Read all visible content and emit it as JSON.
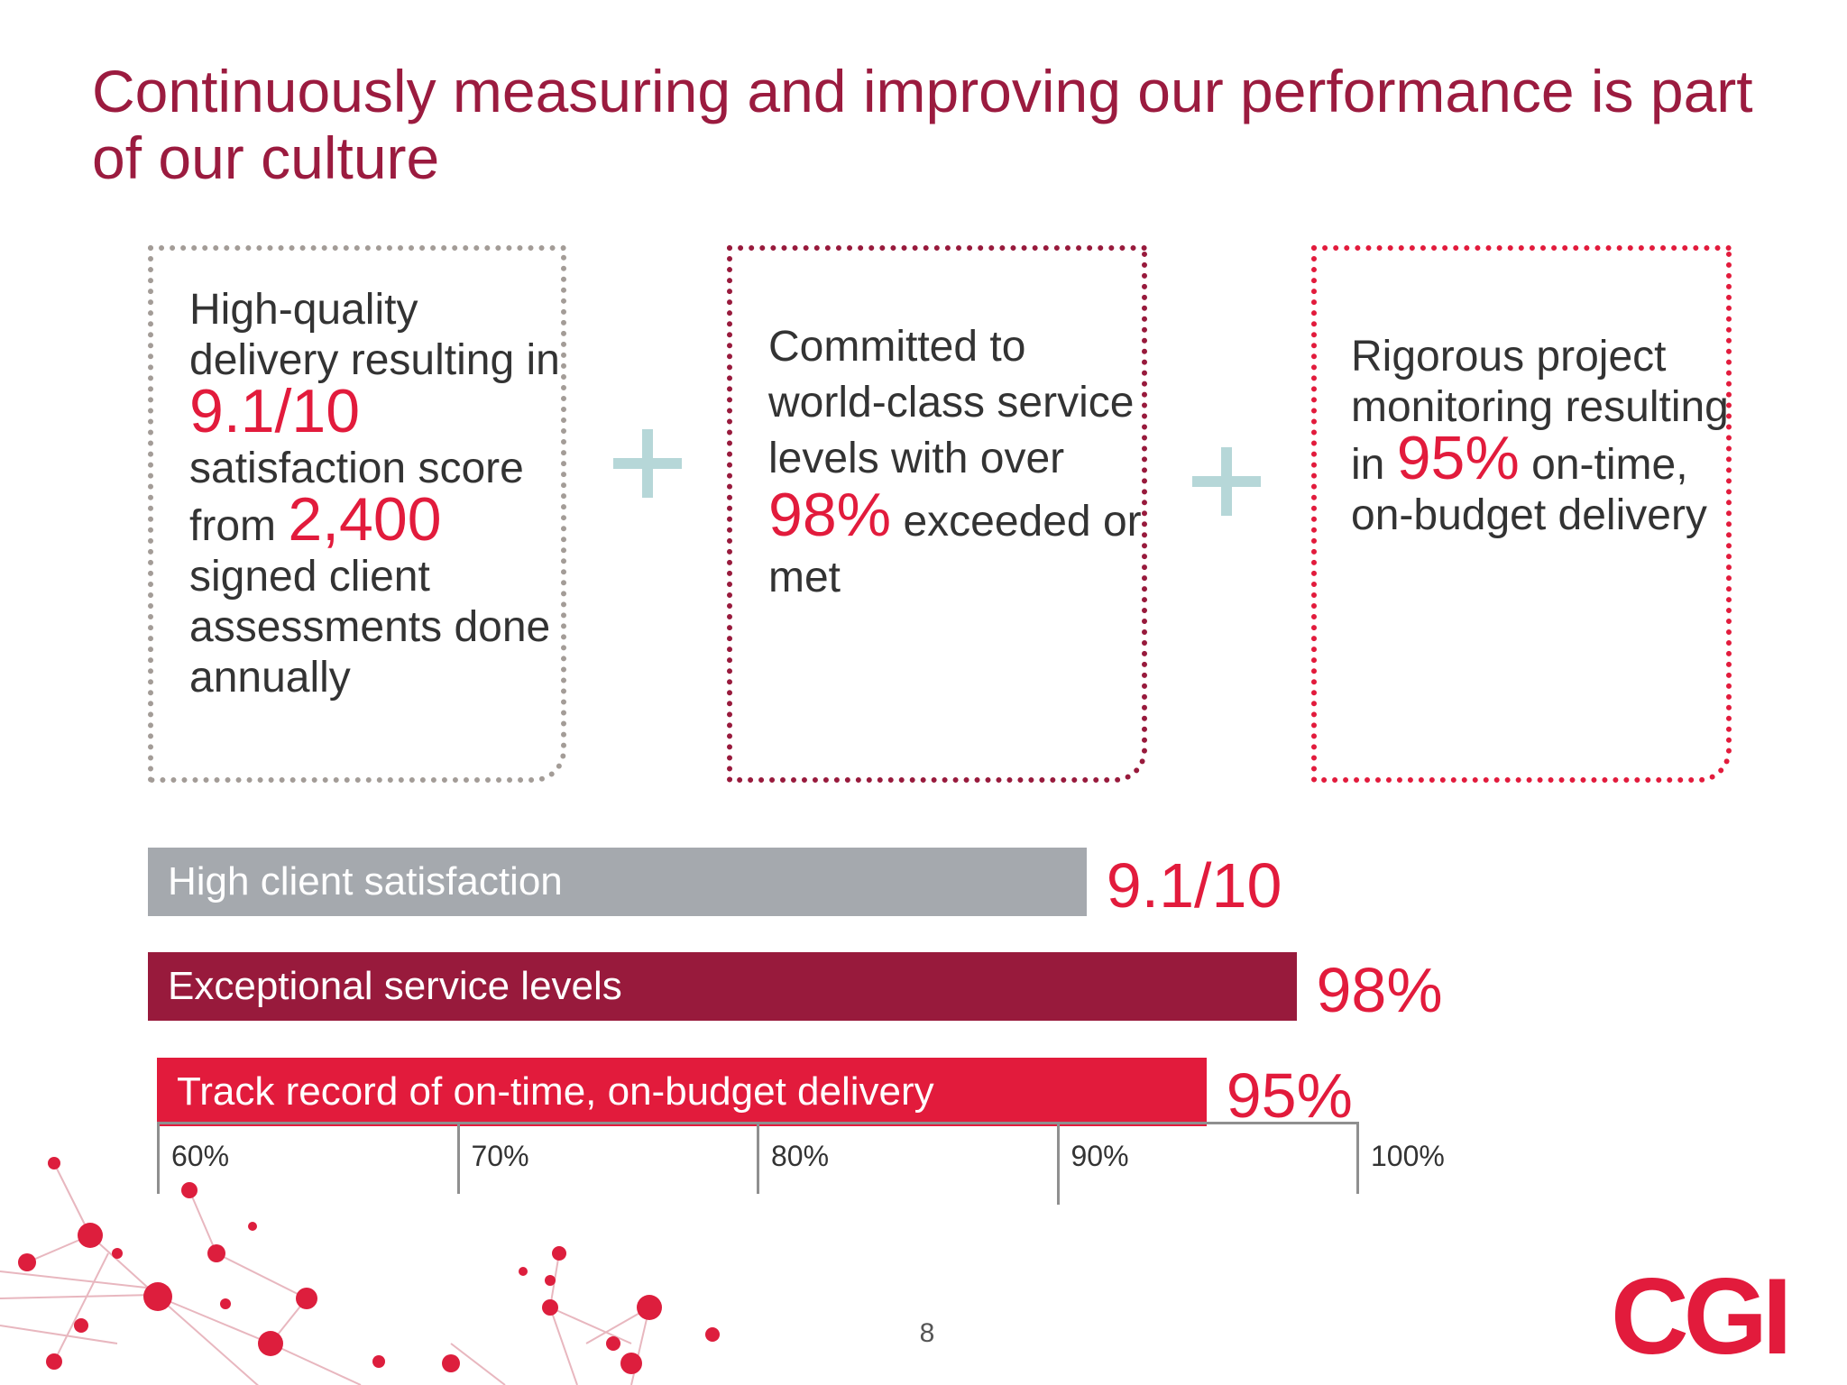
{
  "title": "Continuously measuring and improving our performance is part of our culture",
  "boxes": [
    {
      "t1": "High-quality delivery resulting in ",
      "v1": "9.1/10",
      "t2": " satisfaction score from ",
      "v2": "2,400",
      "t3": " signed client assessments done annually"
    },
    {
      "t1": "Committed to world-class service levels with over ",
      "v1": "98%",
      "t2": " exceeded or met"
    },
    {
      "t1": "Rigorous project monitoring resulting in ",
      "v1": "95%",
      "t2": " on-time, on-budget delivery"
    }
  ],
  "chart_data": {
    "type": "bar",
    "orientation": "horizontal",
    "categories": [
      "High client satisfaction",
      "Exceptional service levels",
      "Track record of on-time, on-budget delivery"
    ],
    "values": [
      91,
      98,
      95
    ],
    "value_labels": [
      "9.1/10",
      "98%",
      "95%"
    ],
    "bar_colors": [
      "#a5a9ae",
      "#981a3c",
      "#e21b3c"
    ],
    "x_ticks": [
      "60%",
      "70%",
      "80%",
      "90%",
      "100%"
    ],
    "xlim": [
      60,
      100
    ]
  },
  "page_number": "8",
  "logo_text": "CGI",
  "colors": {
    "title": "#9b1b3f",
    "accent_red": "#e21b3c",
    "burgundy": "#981a3c",
    "gray": "#a5a9ae",
    "plus": "#b6d7d8"
  }
}
